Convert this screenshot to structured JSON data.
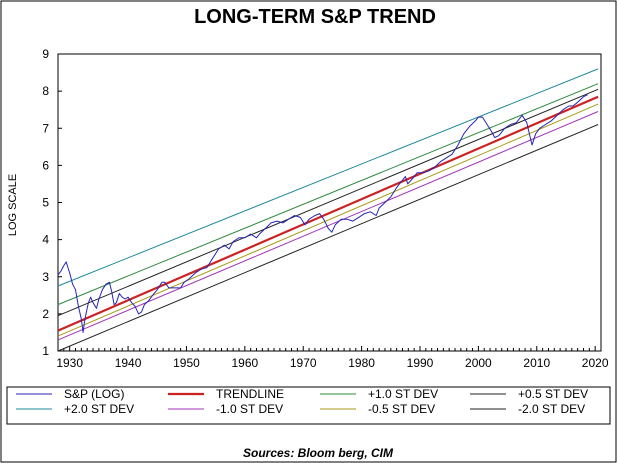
{
  "chart_data": {
    "type": "line",
    "title": "LONG-TERM S&P TREND",
    "ylabel": "LOG SCALE",
    "xlabel": "",
    "source": "Sources:  Bloom berg, CIM",
    "xlim": [
      1928,
      2021
    ],
    "ylim": [
      1,
      9
    ],
    "x_ticks": [
      1930,
      1940,
      1950,
      1960,
      1970,
      1980,
      1990,
      2000,
      2010,
      2020
    ],
    "y_ticks": [
      1,
      2,
      3,
      4,
      5,
      6,
      7,
      8,
      9
    ],
    "grid": false,
    "legend_placement": "bottom",
    "series": [
      {
        "name": "S&P (LOG)",
        "color": "#2525b8",
        "width": 1,
        "x": [
          1928.0,
          1928.5,
          1929.0,
          1929.4,
          1929.7,
          1930.0,
          1930.5,
          1931.0,
          1931.5,
          1932.0,
          1932.3,
          1932.5,
          1932.8,
          1933.2,
          1933.6,
          1934.0,
          1934.6,
          1935.0,
          1935.6,
          1936.2,
          1936.8,
          1937.2,
          1937.6,
          1938.0,
          1938.5,
          1939.0,
          1939.5,
          1940.0,
          1940.6,
          1941.2,
          1941.8,
          1942.3,
          1942.8,
          1943.5,
          1944.2,
          1945.0,
          1945.8,
          1946.3,
          1947.0,
          1948.0,
          1949.0,
          1949.6,
          1950.5,
          1951.5,
          1952.5,
          1953.5,
          1954.5,
          1955.5,
          1956.5,
          1957.3,
          1958.0,
          1959.0,
          1960.0,
          1961.0,
          1962.0,
          1962.5,
          1963.5,
          1964.5,
          1965.5,
          1966.5,
          1967.5,
          1968.5,
          1969.5,
          1970.3,
          1971.0,
          1972.0,
          1972.8,
          1973.5,
          1974.3,
          1974.9,
          1975.5,
          1976.5,
          1977.5,
          1978.5,
          1979.5,
          1980.5,
          1981.5,
          1982.5,
          1983.0,
          1984.0,
          1985.0,
          1986.0,
          1987.5,
          1987.9,
          1988.5,
          1989.5,
          1990.5,
          1991.5,
          1992.5,
          1993.5,
          1994.5,
          1995.5,
          1996.5,
          1997.5,
          1998.5,
          1999.5,
          2000.0,
          2000.7,
          2001.5,
          2002.3,
          2002.8,
          2003.5,
          2004.5,
          2005.5,
          2006.5,
          2007.5,
          2008.3,
          2008.8,
          2009.2,
          2009.8,
          2010.5,
          2011.5,
          2012.5,
          2013.5,
          2014.5,
          2015.5,
          2016.2,
          2017.0,
          2018.0,
          2018.7
        ],
        "values": [
          3.05,
          3.15,
          3.3,
          3.4,
          3.25,
          3.1,
          2.8,
          2.65,
          2.2,
          1.85,
          1.5,
          1.75,
          2.0,
          2.3,
          2.45,
          2.3,
          2.15,
          2.4,
          2.65,
          2.8,
          2.85,
          2.6,
          2.25,
          2.3,
          2.55,
          2.45,
          2.4,
          2.45,
          2.3,
          2.2,
          2.0,
          2.05,
          2.25,
          2.35,
          2.5,
          2.65,
          2.85,
          2.85,
          2.7,
          2.7,
          2.7,
          2.85,
          2.95,
          3.1,
          3.2,
          3.25,
          3.5,
          3.75,
          3.85,
          3.75,
          3.95,
          4.05,
          4.05,
          4.15,
          4.05,
          4.15,
          4.3,
          4.45,
          4.5,
          4.45,
          4.55,
          4.65,
          4.6,
          4.4,
          4.55,
          4.65,
          4.7,
          4.55,
          4.3,
          4.2,
          4.4,
          4.55,
          4.55,
          4.5,
          4.6,
          4.7,
          4.75,
          4.65,
          4.85,
          5.0,
          5.15,
          5.4,
          5.7,
          5.5,
          5.6,
          5.8,
          5.8,
          5.85,
          5.95,
          6.1,
          6.2,
          6.3,
          6.55,
          6.85,
          7.05,
          7.2,
          7.3,
          7.3,
          7.1,
          6.9,
          6.75,
          6.8,
          7.0,
          7.1,
          7.15,
          7.35,
          7.15,
          6.8,
          6.55,
          6.85,
          7.0,
          7.1,
          7.2,
          7.35,
          7.5,
          7.6,
          7.6,
          7.7,
          7.85,
          7.9
        ]
      },
      {
        "name": "TRENDLINE",
        "color": "#cc2222",
        "width": 2.2,
        "x": [
          1928,
          2020.5
        ],
        "values": [
          1.55,
          7.85
        ]
      },
      {
        "name": "+1.0 ST DEV",
        "color": "#2e8b3e",
        "width": 1,
        "x": [
          1928,
          2020.5
        ],
        "values": [
          2.25,
          8.2
        ]
      },
      {
        "name": "+0.5 ST DEV",
        "color": "#222222",
        "width": 1,
        "x": [
          1928,
          2020.5
        ],
        "values": [
          1.95,
          8.05
        ]
      },
      {
        "name": "+2.0 ST DEV",
        "color": "#1f8a9a",
        "width": 1,
        "x": [
          1928,
          2020.5
        ],
        "values": [
          2.75,
          8.6
        ]
      },
      {
        "name": "-1.0 ST DEV",
        "color": "#a235b8",
        "width": 1,
        "x": [
          1928,
          2020.5
        ],
        "values": [
          1.3,
          7.45
        ]
      },
      {
        "name": "-0.5 ST DEV",
        "color": "#a89a1a",
        "width": 1,
        "x": [
          1928,
          2020.5
        ],
        "values": [
          1.4,
          7.65
        ]
      },
      {
        "name": "-2.0 ST DEV",
        "color": "#222222",
        "width": 1,
        "x": [
          1928,
          2020.5
        ],
        "values": [
          1.0,
          7.1
        ]
      }
    ]
  }
}
